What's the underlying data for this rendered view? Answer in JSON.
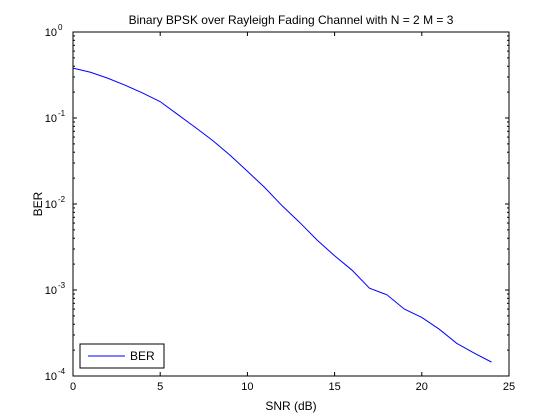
{
  "chart_data": {
    "type": "line",
    "title": "Binary BPSK over Rayleigh Fading Channel with N = 2 M = 3",
    "xlabel": "SNR (dB)",
    "ylabel": "BER",
    "xlim": [
      0,
      25
    ],
    "ylim": [
      0.0001,
      1
    ],
    "yscale": "log",
    "grid": false,
    "legend_position": "bottom-left",
    "x_ticks": [
      "0",
      "5",
      "10",
      "15",
      "20",
      "25"
    ],
    "y_ticks": [
      {
        "base": "10",
        "exp": "0"
      },
      {
        "base": "10",
        "exp": "-1"
      },
      {
        "base": "10",
        "exp": "-2"
      },
      {
        "base": "10",
        "exp": "-3"
      },
      {
        "base": "10",
        "exp": "-4"
      }
    ],
    "series": [
      {
        "name": "BER",
        "color": "#0000ff",
        "x": [
          0,
          1,
          2,
          3,
          4,
          5,
          6,
          7,
          8,
          9,
          10,
          11,
          12,
          13,
          14,
          15,
          16,
          17,
          18,
          19,
          20,
          21,
          22,
          23,
          24
        ],
        "y": [
          0.38,
          0.34,
          0.29,
          0.24,
          0.195,
          0.155,
          0.11,
          0.078,
          0.055,
          0.037,
          0.024,
          0.0155,
          0.0095,
          0.0061,
          0.0038,
          0.0025,
          0.0017,
          0.00105,
          0.00088,
          0.0006,
          0.00048,
          0.00035,
          0.00024,
          0.000185,
          0.000145
        ]
      }
    ]
  }
}
